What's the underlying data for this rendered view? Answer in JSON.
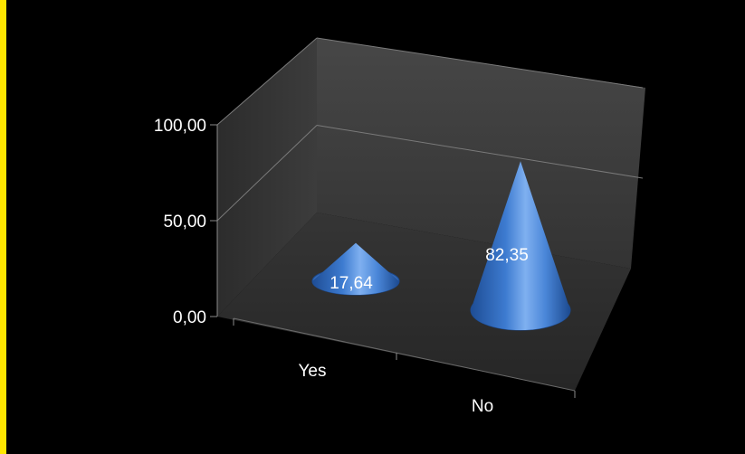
{
  "chart_data": {
    "type": "bar",
    "shape": "3d-cone",
    "title": "",
    "xlabel": "",
    "ylabel": "",
    "categories": [
      "Yes",
      "No"
    ],
    "values": [
      17.64,
      82.35
    ],
    "value_labels": [
      "17,64",
      "82,35"
    ],
    "ylim": [
      0,
      100
    ],
    "y_ticks": [
      0,
      50,
      100
    ],
    "y_tick_labels": [
      "0,00",
      "50,00",
      "100,00"
    ],
    "grid": true,
    "legend": "none",
    "colors": {
      "background": "#000000",
      "walls": "#3A3A3A",
      "floor": "#2E2E2E",
      "cone": "#4A86D8",
      "accent_bar": "#FFE600"
    }
  }
}
